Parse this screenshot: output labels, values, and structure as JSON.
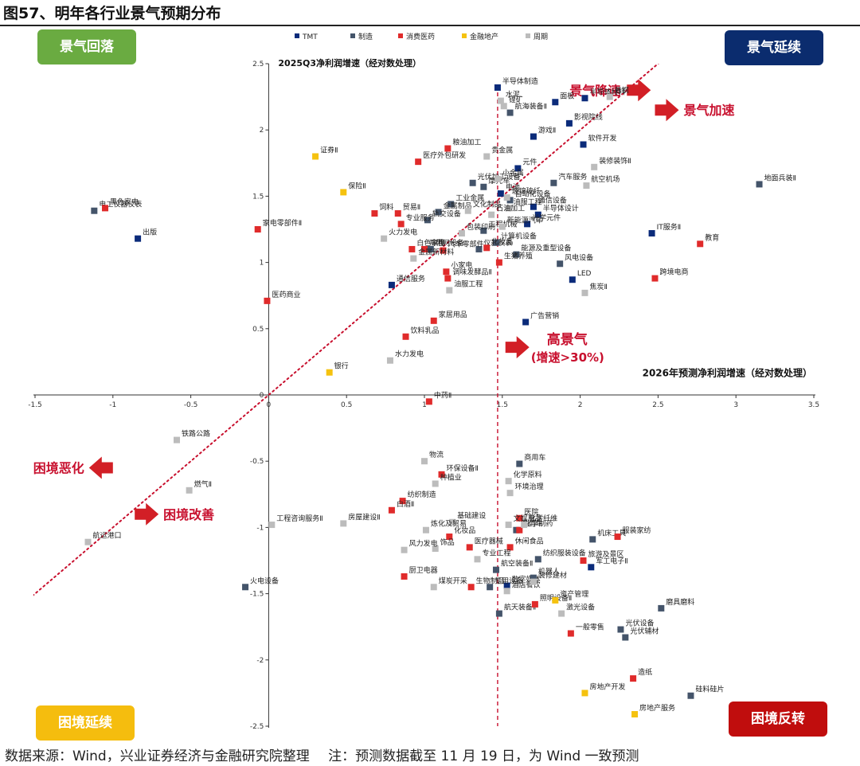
{
  "figure_title": "图57、明年各行业景气预期分布",
  "footer": {
    "source": "数据来源：Wind，兴业证券经济与金融研究院整理",
    "note": "注：预测数据截至 11 月 19 日，为 Wind 一致预测"
  },
  "quadrants": {
    "top_left": "景气回落",
    "top_right": "景气延续",
    "bottom_left": "困境延续",
    "bottom_right": "困境反转"
  },
  "colors": {
    "TMT": "#0b2b7a",
    "制造": "#44546a",
    "消费医药": "#e02b2b",
    "金融地产": "#f5c20f",
    "周期": "#bcbcbc",
    "arrow": "#d21f26",
    "guide": "#c8102e",
    "label_red": "#c8102e"
  },
  "annotations": [
    {
      "id": "arrow-slowdown",
      "text": "景气降速",
      "x": 2.3,
      "y": 2.3,
      "dir": "right"
    },
    {
      "id": "arrow-accelerate",
      "text": "景气加速",
      "x": 2.48,
      "y": 2.15,
      "dir": "right"
    },
    {
      "id": "arrow-high",
      "text": "高景气",
      "text2": "(增速>30%)",
      "x": 1.52,
      "y": 0.36,
      "dir": "right"
    },
    {
      "id": "arrow-worsen",
      "text": "困境恶化",
      "x": -1.0,
      "y": -0.55,
      "dir": "left"
    },
    {
      "id": "arrow-improve",
      "text": "困境改善",
      "x": -0.86,
      "y": -0.9,
      "dir": "right"
    }
  ],
  "chart_data": {
    "type": "scatter",
    "title": "",
    "xlabel": "2026年预测净利润增速（经对数处理）",
    "ylabel": "2025Q3净利润增速（经对数处理）",
    "xlim": [
      -1.5,
      3.5
    ],
    "ylim": [
      -2.5,
      2.5
    ],
    "xticks": [
      -1.5,
      -1,
      -0.5,
      0,
      0.5,
      1,
      1.5,
      2,
      2.5,
      3,
      3.5
    ],
    "yticks": [
      -2.5,
      -2,
      -1.5,
      -1,
      -0.5,
      0.5,
      1,
      1.5,
      2,
      2.5
    ],
    "origin_label": "0",
    "legend_position": "top-center",
    "reference_lines": [
      {
        "type": "vertical",
        "x": 1.47,
        "style": "dashed"
      },
      {
        "type": "diagonal",
        "slope": 1,
        "style": "dotted"
      }
    ],
    "series": [
      {
        "name": "TMT",
        "points": [
          {
            "label": "半导体制造",
            "x": 1.47,
            "y": 2.32
          },
          {
            "label": "面板",
            "x": 1.84,
            "y": 2.21
          },
          {
            "label": "半导体材料",
            "x": 2.03,
            "y": 2.24
          },
          {
            "label": "影视院线",
            "x": 1.93,
            "y": 2.05
          },
          {
            "label": "游戏Ⅱ",
            "x": 1.7,
            "y": 1.95
          },
          {
            "label": "软件开发",
            "x": 2.02,
            "y": 1.89
          },
          {
            "label": "元件",
            "x": 1.6,
            "y": 1.71
          },
          {
            "label": "半导体设计",
            "x": 1.73,
            "y": 1.36
          },
          {
            "label": "光学元件",
            "x": 1.66,
            "y": 1.29
          },
          {
            "label": "通信设备",
            "x": 1.7,
            "y": 1.42
          },
          {
            "label": "IT服务Ⅱ",
            "x": 2.46,
            "y": 1.22
          },
          {
            "label": "LED",
            "x": 1.95,
            "y": 0.87
          },
          {
            "label": "通信服务",
            "x": 0.79,
            "y": 0.83
          },
          {
            "label": "广告营销",
            "x": 1.65,
            "y": 0.55
          },
          {
            "label": "出版",
            "x": -0.84,
            "y": 1.18
          },
          {
            "label": "数字媒体",
            "x": 1.53,
            "y": -1.44
          },
          {
            "label": "军工电子Ⅱ",
            "x": 2.07,
            "y": -1.3
          },
          {
            "label": "电池",
            "x": 1.49,
            "y": 1.52
          }
        ]
      },
      {
        "name": "制造",
        "points": [
          {
            "label": "航海装备Ⅱ",
            "x": 1.55,
            "y": 2.13
          },
          {
            "label": "电工仪器仪表",
            "x": -1.12,
            "y": 1.39
          },
          {
            "label": "摩托车",
            "x": 1.38,
            "y": 1.57
          },
          {
            "label": "汽车服务",
            "x": 1.83,
            "y": 1.6
          },
          {
            "label": "光伏加工设备",
            "x": 1.31,
            "y": 1.6
          },
          {
            "label": "工业金属",
            "x": 1.17,
            "y": 1.44
          },
          {
            "label": "金属制品",
            "x": 1.09,
            "y": 1.38
          },
          {
            "label": "地面兵装Ⅱ",
            "x": 3.15,
            "y": 1.59
          },
          {
            "label": "工程机械",
            "x": 1.38,
            "y": 1.24
          },
          {
            "label": "能源及重型设备",
            "x": 1.59,
            "y": 1.06
          },
          {
            "label": "风电设备",
            "x": 1.87,
            "y": 0.99
          },
          {
            "label": "电网设备",
            "x": 1.04,
            "y": 1.1
          },
          {
            "label": "仪器仪表",
            "x": 1.35,
            "y": 1.1
          },
          {
            "label": "计算机设备",
            "x": 1.46,
            "y": 1.15
          },
          {
            "label": "轨交设备",
            "x": 1.02,
            "y": 1.32
          },
          {
            "label": "商用车",
            "x": 1.61,
            "y": -0.52
          },
          {
            "label": "乘用车",
            "x": 1.59,
            "y": -1.02
          },
          {
            "label": "机床工具",
            "x": 2.08,
            "y": -1.09
          },
          {
            "label": "纺织服装设备",
            "x": 1.73,
            "y": -1.24
          },
          {
            "label": "航空装备Ⅱ",
            "x": 1.46,
            "y": -1.32
          },
          {
            "label": "机器人",
            "x": 1.7,
            "y": -1.38
          },
          {
            "label": "火电设备",
            "x": -0.15,
            "y": -1.45
          },
          {
            "label": "航天装备Ⅱ",
            "x": 1.48,
            "y": -1.65
          },
          {
            "label": "光伏设备",
            "x": 2.26,
            "y": -1.77
          },
          {
            "label": "光伏辅材",
            "x": 2.29,
            "y": -1.83
          },
          {
            "label": "磨具磨料",
            "x": 2.52,
            "y": -1.61
          },
          {
            "label": "硅料硅片",
            "x": 2.71,
            "y": -2.27
          },
          {
            "label": "专用设备",
            "x": 1.42,
            "y": -1.45
          },
          {
            "label": "自动化设备",
            "x": 1.55,
            "y": 1.47
          }
        ]
      },
      {
        "name": "消费医药",
        "points": [
          {
            "label": "黑色家电",
            "x": -1.05,
            "y": 1.41
          },
          {
            "label": "家电零部件Ⅱ",
            "x": -0.07,
            "y": 1.25
          },
          {
            "label": "粮油加工",
            "x": 1.15,
            "y": 1.86
          },
          {
            "label": "医疗外包研发",
            "x": 0.96,
            "y": 1.76
          },
          {
            "label": "贸易Ⅱ",
            "x": 0.83,
            "y": 1.37
          },
          {
            "label": "饲料",
            "x": 0.68,
            "y": 1.37
          },
          {
            "label": "专业服务",
            "x": 0.85,
            "y": 1.29
          },
          {
            "label": "化妆品",
            "x": 1.4,
            "y": 1.11
          },
          {
            "label": "教育",
            "x": 2.77,
            "y": 1.14
          },
          {
            "label": "跨境电商",
            "x": 2.48,
            "y": 0.88
          },
          {
            "label": "医药商业",
            "x": -0.01,
            "y": 0.71
          },
          {
            "label": "调味发酵品Ⅱ",
            "x": 1.15,
            "y": 0.88
          },
          {
            "label": "生猪养殖",
            "x": 1.48,
            "y": 1.0
          },
          {
            "label": "汽车零部件",
            "x": 1.12,
            "y": 1.09
          },
          {
            "label": "白色家电",
            "x": 0.92,
            "y": 1.1
          },
          {
            "label": "啤酒",
            "x": 1.0,
            "y": 1.1
          },
          {
            "label": "家居用品",
            "x": 1.06,
            "y": 0.56
          },
          {
            "label": "饮料乳品",
            "x": 0.88,
            "y": 0.44
          },
          {
            "label": "中药Ⅱ",
            "x": 1.03,
            "y": -0.05
          },
          {
            "label": "环保设备Ⅱ",
            "x": 1.11,
            "y": -0.6
          },
          {
            "label": "纺织制造",
            "x": 0.86,
            "y": -0.8
          },
          {
            "label": "白酒Ⅱ",
            "x": 0.79,
            "y": -0.87
          },
          {
            "label": "医院",
            "x": 1.61,
            "y": -0.93
          },
          {
            "label": "化学制药",
            "x": 1.61,
            "y": -1.02
          },
          {
            "label": "化妆品 ",
            "x": 1.16,
            "y": -1.07
          },
          {
            "label": "医疗器械",
            "x": 1.29,
            "y": -1.15
          },
          {
            "label": "休闲食品",
            "x": 1.55,
            "y": -1.15
          },
          {
            "label": "旅游及景区",
            "x": 2.02,
            "y": -1.25
          },
          {
            "label": "服装家纺",
            "x": 2.24,
            "y": -1.07
          },
          {
            "label": "厨卫电器",
            "x": 0.87,
            "y": -1.37
          },
          {
            "label": "生物制品",
            "x": 1.3,
            "y": -1.45
          },
          {
            "label": "照明设备Ⅱ",
            "x": 1.71,
            "y": -1.58
          },
          {
            "label": "一般零售",
            "x": 1.94,
            "y": -1.8
          },
          {
            "label": "造纸",
            "x": 2.34,
            "y": -2.14
          },
          {
            "label": "小家电",
            "x": 1.14,
            "y": 0.93
          }
        ]
      },
      {
        "name": "金融地产",
        "points": [
          {
            "label": "证券Ⅱ",
            "x": 0.3,
            "y": 1.8
          },
          {
            "label": "保险Ⅱ",
            "x": 0.48,
            "y": 1.53
          },
          {
            "label": "银行",
            "x": 0.39,
            "y": 0.17
          },
          {
            "label": "资产管理",
            "x": 1.84,
            "y": -1.55
          },
          {
            "label": "房地产开发",
            "x": 2.03,
            "y": -2.25
          },
          {
            "label": "房地产服务",
            "x": 2.35,
            "y": -2.41
          }
        ]
      },
      {
        "name": "周期",
        "points": [
          {
            "label": "水泥",
            "x": 1.49,
            "y": 2.22
          },
          {
            "label": "锂矿",
            "x": 1.51,
            "y": 2.18
          },
          {
            "label": "普钢",
            "x": 2.19,
            "y": 2.25
          },
          {
            "label": "贵金属",
            "x": 1.4,
            "y": 1.8
          },
          {
            "label": "小金属",
            "x": 1.47,
            "y": 1.63
          },
          {
            "label": "装修装饰Ⅱ",
            "x": 2.09,
            "y": 1.72
          },
          {
            "label": "航空机场",
            "x": 2.04,
            "y": 1.58
          },
          {
            "label": "玻璃玻纤",
            "x": 1.53,
            "y": 1.49
          },
          {
            "label": "油服工程",
            "x": 1.54,
            "y": 1.41
          },
          {
            "label": "石油加工",
            "x": 1.43,
            "y": 1.36
          },
          {
            "label": "新能源汽车",
            "x": 1.5,
            "y": 1.27
          },
          {
            "label": "包装印刷",
            "x": 1.24,
            "y": 1.22
          },
          {
            "label": "文化制品",
            "x": 1.28,
            "y": 1.39
          },
          {
            "label": "火力发电",
            "x": 0.74,
            "y": 1.18
          },
          {
            "label": "金属新材料",
            "x": 0.93,
            "y": 1.03
          },
          {
            "label": "焦炭Ⅱ",
            "x": 2.03,
            "y": 0.77
          },
          {
            "label": "油服工程 ",
            "x": 1.16,
            "y": 0.79
          },
          {
            "label": "水力发电",
            "x": 0.78,
            "y": 0.26
          },
          {
            "label": "铁路公路",
            "x": -0.59,
            "y": -0.34
          },
          {
            "label": "物流",
            "x": 1.0,
            "y": -0.5
          },
          {
            "label": "燃气Ⅱ",
            "x": -0.51,
            "y": -0.72
          },
          {
            "label": "种植业",
            "x": 1.07,
            "y": -0.67
          },
          {
            "label": "化学原料",
            "x": 1.54,
            "y": -0.65
          },
          {
            "label": "环境治理",
            "x": 1.55,
            "y": -0.74
          },
          {
            "label": "工程咨询服务Ⅱ",
            "x": 0.02,
            "y": -0.98
          },
          {
            "label": "房屋建设Ⅱ",
            "x": 0.48,
            "y": -0.97
          },
          {
            "label": "基础建设",
            "x": 1.18,
            "y": -0.96
          },
          {
            "label": "炼化及贸易",
            "x": 1.01,
            "y": -1.02
          },
          {
            "label": "饰品",
            "x": 1.07,
            "y": -1.16
          },
          {
            "label": "风力发电",
            "x": 0.87,
            "y": -1.17
          },
          {
            "label": "航运港口",
            "x": -1.16,
            "y": -1.11
          },
          {
            "label": "煤炭开采",
            "x": 1.06,
            "y": -1.45
          },
          {
            "label": "酒店餐饮",
            "x": 1.53,
            "y": -1.48
          },
          {
            "label": "装修建材",
            "x": 1.7,
            "y": -1.41
          },
          {
            "label": "激光设备",
            "x": 1.88,
            "y": -1.65
          },
          {
            "label": "化学纤维",
            "x": 1.64,
            "y": -0.98
          },
          {
            "label": "文娱用品",
            "x": 1.54,
            "y": -0.98
          },
          {
            "label": "专业工程",
            "x": 1.34,
            "y": -1.24
          }
        ]
      }
    ]
  }
}
